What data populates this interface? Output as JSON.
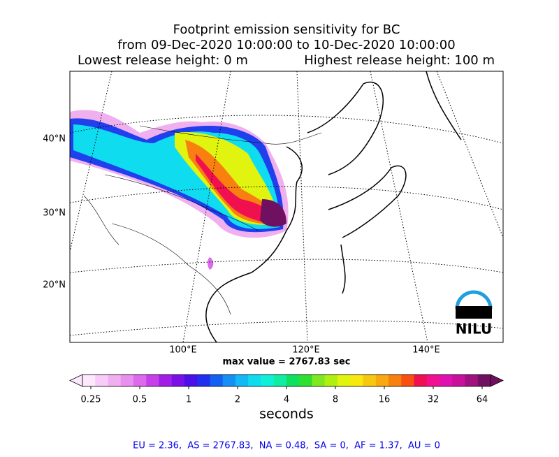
{
  "title": {
    "line1": "Footprint emission sensitivity for BC",
    "line2": "from 09-Dec-2020 10:00:00 to 10-Dec-2020 10:00:00",
    "lowest": "Lowest release height: 0 m",
    "highest": "Highest release height: 100 m"
  },
  "map": {
    "lat_labels": [
      "40°N",
      "30°N",
      "20°N"
    ],
    "lon_labels": [
      "100°E",
      "120°E",
      "140°E"
    ],
    "logo": "NILU"
  },
  "max_value": "max value = 2767.83 sec",
  "colorbar": {
    "ticks": [
      0.25,
      0.5,
      1,
      2,
      4,
      8,
      16,
      32,
      64
    ],
    "label": "seconds",
    "colors": [
      "#fde8fd",
      "#f8ccf8",
      "#f0b0f0",
      "#e890ee",
      "#dc6aec",
      "#c640ea",
      "#a01ee6",
      "#7a10e8",
      "#4a10ea",
      "#2030ee",
      "#1460f0",
      "#1490f4",
      "#14b8f4",
      "#10dcf0",
      "#10f0d8",
      "#10eca0",
      "#10e060",
      "#30e030",
      "#80e820",
      "#b0f010",
      "#e0f410",
      "#f8e810",
      "#f8c810",
      "#f8a810",
      "#f88010",
      "#f85010",
      "#f01050",
      "#f01090",
      "#e010b0",
      "#c8109c",
      "#a0107e",
      "#701060"
    ]
  },
  "footer": "EU = 2.36,  AS = 2767.83,  NA = 0.48,  SA = 0,  AF = 1.37,  AU = 0"
}
